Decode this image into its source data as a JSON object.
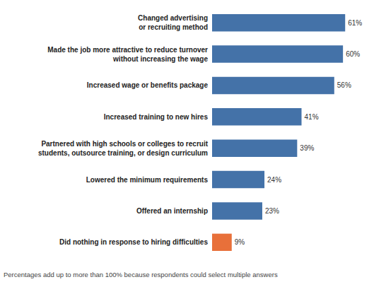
{
  "chart_data": {
    "type": "bar",
    "orientation": "horizontal",
    "categories": [
      "Did nothing in response to hiring difficulties",
      "Offered an internship",
      "Lowered the minimum requirements",
      "Partnered with high schools or colleges to recruit\nstudents, outsource training, or design curriculum",
      "Increased training to new hires",
      "Increased wage or benefits package",
      "Made the job more attractive to reduce turnover\nwithout increasing the wage",
      "Changed advertising\nor recruiting method"
    ],
    "values": [
      9,
      23,
      24,
      39,
      41,
      56,
      60,
      61
    ],
    "value_labels": [
      "9%",
      "23%",
      "24%",
      "39%",
      "41%",
      "56%",
      "60%",
      "61%"
    ],
    "colors": [
      "#e8703a",
      "#4472a8",
      "#4472a8",
      "#4472a8",
      "#4472a8",
      "#4472a8",
      "#4472a8",
      "#4472a8"
    ],
    "data_labels": true,
    "xlim": [
      0,
      70
    ],
    "tick_labels": "y",
    "grid": false,
    "annotation": "Percentages add up to more than 100% because respondents could select multiple answers"
  }
}
